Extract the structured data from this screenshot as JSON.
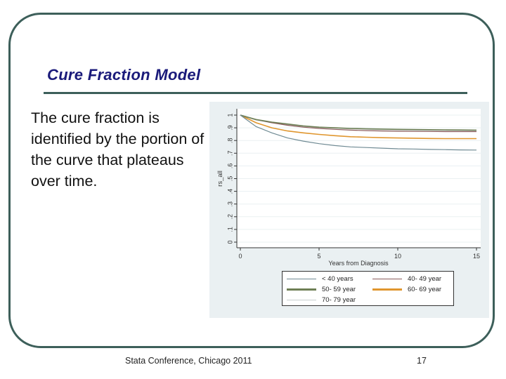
{
  "slide": {
    "title": "Cure Fraction Model",
    "body": "The cure fraction is identified by the portion of the curve that plateaus over time.",
    "footer": "Stata Conference, Chicago 2011",
    "page_number": "17",
    "colors": {
      "frame": "#3d5f5a",
      "title": "#1a1a7a",
      "chart_bg": "#eaf0f2"
    }
  },
  "chart_data": {
    "type": "line",
    "title": "",
    "xlabel": "Years from Diagnosis",
    "ylabel": "rs_all",
    "xlim": [
      0,
      15
    ],
    "ylim": [
      0,
      1
    ],
    "xticks": [
      "0",
      "5",
      "10",
      "15"
    ],
    "yticks": [
      "0",
      ".1",
      ".2",
      ".3",
      ".4",
      ".5",
      ".6",
      ".7",
      ".8",
      ".9",
      "1"
    ],
    "grid": true,
    "legend_position": "bottom",
    "x": [
      0,
      1,
      2,
      3,
      4,
      5,
      6,
      7,
      8,
      9,
      10,
      11,
      12,
      13,
      14,
      15
    ],
    "series": [
      {
        "name": "< 40 years",
        "color": "#6f8a93",
        "values": [
          1.0,
          0.91,
          0.86,
          0.82,
          0.795,
          0.775,
          0.76,
          0.75,
          0.745,
          0.74,
          0.735,
          0.733,
          0.73,
          0.728,
          0.726,
          0.725
        ]
      },
      {
        "name": "40- 49 year",
        "color": "#8a5a5a",
        "values": [
          1.0,
          0.965,
          0.94,
          0.92,
          0.905,
          0.895,
          0.888,
          0.882,
          0.878,
          0.875,
          0.873,
          0.872,
          0.871,
          0.87,
          0.87,
          0.87
        ]
      },
      {
        "name": "50- 59 year",
        "color": "#6e7f55",
        "values": [
          1.0,
          0.965,
          0.945,
          0.93,
          0.915,
          0.905,
          0.9,
          0.895,
          0.892,
          0.89,
          0.888,
          0.886,
          0.885,
          0.884,
          0.883,
          0.882
        ]
      },
      {
        "name": "60- 69 year",
        "color": "#e0962e",
        "values": [
          1.0,
          0.94,
          0.9,
          0.875,
          0.86,
          0.848,
          0.838,
          0.83,
          0.826,
          0.822,
          0.82,
          0.818,
          0.816,
          0.815,
          0.815,
          0.815
        ]
      },
      {
        "name": "70- 79 year",
        "color": "#c8cfcf",
        "values": [
          1.0,
          0.96,
          0.94,
          0.925,
          0.912,
          0.902,
          0.896,
          0.892,
          0.888,
          0.885,
          0.883,
          0.881,
          0.88,
          0.879,
          0.878,
          0.877
        ]
      }
    ]
  }
}
